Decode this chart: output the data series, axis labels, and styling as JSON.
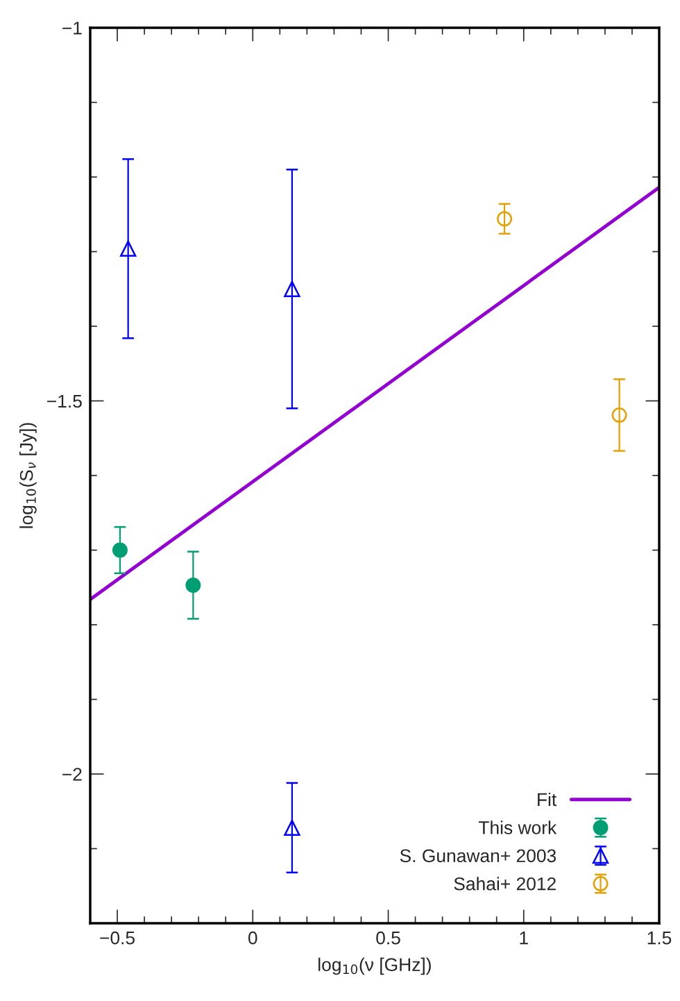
{
  "chart_data": {
    "type": "scatter",
    "xlabel": "log$_{10}$(ν [GHz])",
    "ylabel": "log$_{10}$(S$_{ν}$ [Jy])",
    "xlim": [
      -0.6,
      1.5
    ],
    "ylim": [
      -2.2,
      -1
    ],
    "xticks": [
      {
        "value": -0.5,
        "label": "−0.5"
      },
      {
        "value": -0.4,
        "label": null
      },
      {
        "value": -0.3,
        "label": null
      },
      {
        "value": -0.2,
        "label": null
      },
      {
        "value": -0.1,
        "label": null
      },
      0,
      {
        "value": 0.1,
        "label": null
      },
      {
        "value": 0.2,
        "label": null
      },
      {
        "value": 0.3,
        "label": null
      },
      {
        "value": 0.4,
        "label": null
      },
      0.5,
      {
        "value": 0.6,
        "label": null
      },
      {
        "value": 0.7,
        "label": null
      },
      {
        "value": 0.8,
        "label": null
      },
      {
        "value": 0.9,
        "label": null
      },
      1,
      {
        "value": 1.1,
        "label": null
      },
      {
        "value": 1.2,
        "label": null
      },
      {
        "value": 1.3,
        "label": null
      },
      {
        "value": 1.4,
        "label": null
      },
      1.5
    ],
    "yticks": [
      {
        "value": -2.1,
        "label": null
      },
      {
        "value": -2,
        "label": "−2"
      },
      {
        "value": -1.9,
        "label": null
      },
      {
        "value": -1.8,
        "label": null
      },
      {
        "value": -1.7,
        "label": null
      },
      {
        "value": -1.6,
        "label": null
      },
      {
        "value": -1.5,
        "label": "−1.5"
      },
      {
        "value": -1.4,
        "label": null
      },
      {
        "value": -1.3,
        "label": null
      },
      {
        "value": -1.2,
        "label": null
      },
      {
        "value": -1.1,
        "label": null
      },
      {
        "value": -1,
        "label": "−1"
      }
    ],
    "legend": "bottom right",
    "series": [
      {
        "name": "Fit",
        "type": "line",
        "color": "#9400d3",
        "x": [
          -0.6,
          1.5
        ],
        "values": [
          -1.766,
          -1.214
        ]
      },
      {
        "name": "This work",
        "marker": "circle",
        "color": "#009e73",
        "x": [
          -0.49,
          -0.22
        ],
        "values": [
          -1.7,
          -1.747
        ],
        "errors": [
          0.031,
          0.045
        ]
      },
      {
        "name": "S. Gunawan+ 2003",
        "marker": "triangle-open",
        "color": "#0000ff",
        "x": [
          -0.46,
          0.145,
          0.145
        ],
        "values": [
          -1.296,
          -1.35,
          -2.072
        ],
        "errors": [
          0.12,
          0.16,
          0.06
        ]
      },
      {
        "name": "Sahai+ 2012",
        "marker": "circle-open",
        "color": "#e69f00",
        "x": [
          0.929,
          1.353
        ],
        "values": [
          -1.256,
          -1.519
        ],
        "errors": [
          0.02,
          0.048
        ]
      }
    ]
  }
}
